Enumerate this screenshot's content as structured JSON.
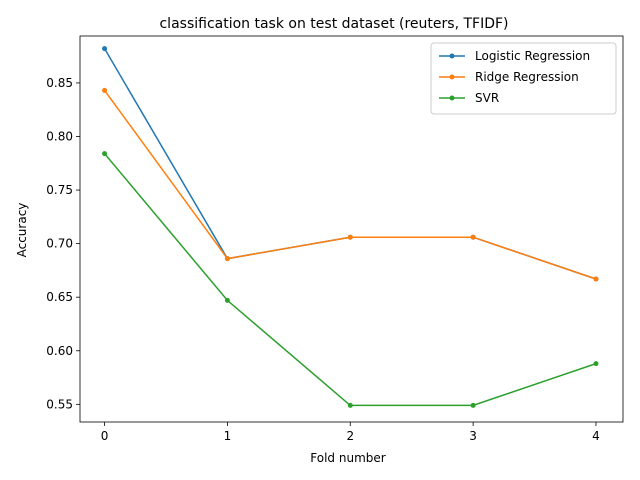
{
  "chart_data": {
    "type": "line",
    "title": "classification task on test dataset (reuters, TFIDF)",
    "xlabel": "Fold number",
    "ylabel": "Accuracy",
    "x": [
      0,
      1,
      2,
      3,
      4
    ],
    "xticks": [
      "0",
      "1",
      "2",
      "3",
      "4"
    ],
    "yticks": [
      "0.55",
      "0.60",
      "0.65",
      "0.70",
      "0.75",
      "0.80",
      "0.85"
    ],
    "xlim": [
      -0.2,
      4.22
    ],
    "ylim": [
      0.5335,
      0.8938
    ],
    "grid": false,
    "legend_position": "top-right",
    "series": [
      {
        "name": "Logistic Regression",
        "color": "#1f77b4",
        "values": [
          0.882,
          0.686,
          0.706,
          0.706,
          0.667
        ]
      },
      {
        "name": "Ridge Regression",
        "color": "#ff7f0e",
        "values": [
          0.843,
          0.686,
          0.706,
          0.706,
          0.667
        ]
      },
      {
        "name": "SVR",
        "color": "#2ca02c",
        "values": [
          0.784,
          0.647,
          0.549,
          0.549,
          0.588
        ]
      }
    ]
  }
}
